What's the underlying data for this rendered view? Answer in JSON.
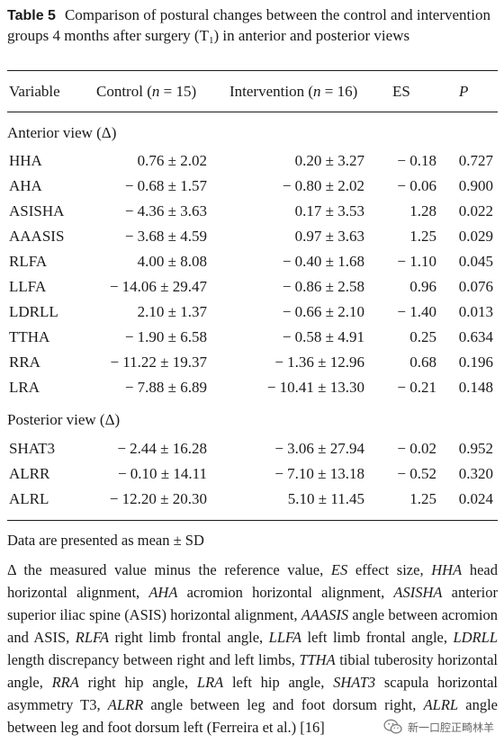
{
  "table": {
    "label": "Table 5",
    "caption_before_sub": "Comparison of postural changes between the control and intervention groups 4 months after surgery (T",
    "caption_sub": "1",
    "caption_after_sub": ") in anterior and posterior views",
    "headers": {
      "variable": "Variable",
      "control_prefix": "Control (",
      "n_symbol": "n",
      "control_suffix": " = 15)",
      "intervention_prefix": "Intervention (",
      "intervention_suffix": " = 16)",
      "es": "ES",
      "p": "P"
    },
    "sections": [
      {
        "title": "Anterior view (Δ)",
        "rows": [
          {
            "variable": "HHA",
            "control": "0.76 ± 2.02",
            "intervention": "0.20 ± 3.27",
            "es": "− 0.18",
            "p": "0.727"
          },
          {
            "variable": "AHA",
            "control": "− 0.68 ± 1.57",
            "intervention": "− 0.80 ± 2.02",
            "es": "− 0.06",
            "p": "0.900"
          },
          {
            "variable": "ASISHA",
            "control": "− 4.36 ± 3.63",
            "intervention": "0.17 ± 3.53",
            "es": "1.28",
            "p": "0.022"
          },
          {
            "variable": "AAASIS",
            "control": "− 3.68 ± 4.59",
            "intervention": "0.97 ± 3.63",
            "es": "1.25",
            "p": "0.029"
          },
          {
            "variable": "RLFA",
            "control": "4.00 ± 8.08",
            "intervention": "− 0.40 ± 1.68",
            "es": "− 1.10",
            "p": "0.045"
          },
          {
            "variable": "LLFA",
            "control": "− 14.06 ± 29.47",
            "intervention": "− 0.86 ± 2.58",
            "es": "0.96",
            "p": "0.076"
          },
          {
            "variable": "LDRLL",
            "control": "2.10 ± 1.37",
            "intervention": "− 0.66 ± 2.10",
            "es": "− 1.40",
            "p": "0.013"
          },
          {
            "variable": "TTHA",
            "control": "− 1.90 ± 6.58",
            "intervention": "− 0.58 ± 4.91",
            "es": "0.25",
            "p": "0.634"
          },
          {
            "variable": "RRA",
            "control": "− 11.22 ± 19.37",
            "intervention": "− 1.36 ± 12.96",
            "es": "0.68",
            "p": "0.196"
          },
          {
            "variable": "LRA",
            "control": "− 7.88 ± 6.89",
            "intervention": "− 10.41 ± 13.30",
            "es": "− 0.21",
            "p": "0.148"
          }
        ]
      },
      {
        "title": "Posterior view (Δ)",
        "rows": [
          {
            "variable": "SHAT3",
            "control": "− 2.44 ± 16.28",
            "intervention": "− 3.06 ± 27.94",
            "es": "− 0.02",
            "p": "0.952"
          },
          {
            "variable": "ALRR",
            "control": "− 0.10 ± 14.11",
            "intervention": "− 7.10 ± 13.18",
            "es": "− 0.52",
            "p": "0.320"
          },
          {
            "variable": "ALRL",
            "control": "− 12.20 ± 20.30",
            "intervention": "5.10 ± 11.45",
            "es": "1.25",
            "p": "0.024"
          }
        ]
      }
    ],
    "footnote_data": "Data are presented as mean ± SD",
    "footnote_legend": [
      {
        "abbr": "",
        "text": "Δ the measured value minus the reference value, "
      },
      {
        "abbr": "ES",
        "text": " effect size, "
      },
      {
        "abbr": "HHA",
        "text": " head horizontal alignment, "
      },
      {
        "abbr": "AHA",
        "text": " acromion horizontal alignment, "
      },
      {
        "abbr": "ASISHA",
        "text": " anterior superior iliac spine (ASIS) horizontal alignment, "
      },
      {
        "abbr": "AAASIS",
        "text": " angle between acromion and ASIS, "
      },
      {
        "abbr": "RLFA",
        "text": " right limb frontal angle, "
      },
      {
        "abbr": "LLFA",
        "text": " left limb frontal angle, "
      },
      {
        "abbr": "LDRLL",
        "text": " length discrepancy between right and left limbs, "
      },
      {
        "abbr": "TTHA",
        "text": " tibial tuberosity horizontal angle, "
      },
      {
        "abbr": "RRA",
        "text": " right hip angle, "
      },
      {
        "abbr": "LRA",
        "text": " left hip angle, "
      },
      {
        "abbr": "SHAT3",
        "text": " scapula horizontal asymmetry T3, "
      },
      {
        "abbr": "ALRR",
        "text": " angle between leg and foot dorsum right, "
      },
      {
        "abbr": "ALRL",
        "text": " angle between leg and foot dorsum left (Ferreira et al.) [16]"
      }
    ]
  },
  "watermark": {
    "text": "新一口腔正畸林羊",
    "icon": "wechat-icon"
  }
}
